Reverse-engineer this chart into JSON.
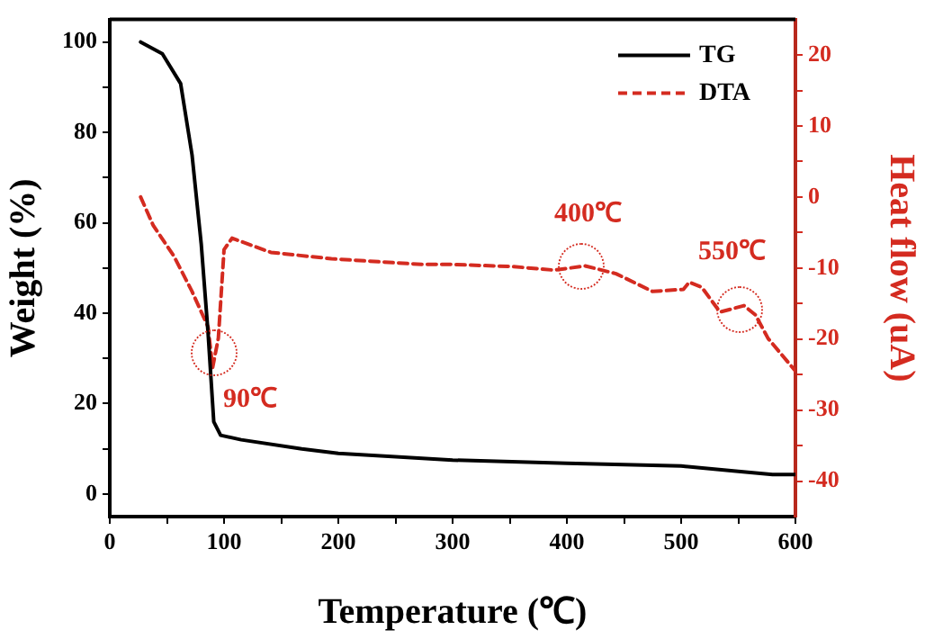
{
  "chart_data": {
    "type": "line",
    "xlabel": "Temperature (℃)",
    "ylabel": "Weight (%)",
    "y2label": "Heat flow (uA)",
    "xlim": [
      0,
      600
    ],
    "xticks": [
      0,
      {
        "value": 50,
        "label": null
      },
      100,
      {
        "value": 150,
        "label": null
      },
      200,
      {
        "value": 250,
        "label": null
      },
      300,
      {
        "value": 350,
        "label": null
      },
      400,
      {
        "value": 450,
        "label": null
      },
      500,
      {
        "value": 550,
        "label": null
      },
      600
    ],
    "ylim": [
      -5,
      105
    ],
    "yticks": [
      0,
      {
        "value": 10,
        "label": null
      },
      20,
      {
        "value": 30,
        "label": null
      },
      40,
      {
        "value": 50,
        "label": null
      },
      60,
      {
        "value": 70,
        "label": null
      },
      80,
      {
        "value": 90,
        "label": null
      },
      100
    ],
    "y2lim": [
      -45,
      25
    ],
    "y2ticks": [
      -40,
      {
        "value": -35,
        "label": null
      },
      -30,
      {
        "value": -25,
        "label": null
      },
      -20,
      {
        "value": -15,
        "label": null
      },
      -10,
      {
        "value": -5,
        "label": null
      },
      0,
      {
        "value": 5,
        "label": null
      },
      10,
      {
        "value": 15,
        "label": null
      },
      20
    ],
    "grid": false,
    "legend": "top right",
    "marker": "none",
    "series": [
      {
        "name": "TG",
        "color": "#000000",
        "line_style": "solid",
        "x": [
          27,
          46,
          62,
          72,
          80,
          86,
          91,
          97,
          115,
          168,
          200,
          300,
          400,
          500,
          550,
          580,
          600
        ],
        "values": [
          100,
          97.4,
          90.8,
          75,
          55.4,
          35.7,
          16,
          13,
          12,
          10,
          9,
          7.5,
          6.8,
          6.2,
          5,
          4.3,
          4.3
        ]
      },
      {
        "name": "DTA",
        "color": "#d42b20",
        "line_style": "dashed",
        "axis": "y2",
        "x": [
          27,
          38,
          56,
          72,
          86,
          90,
          95,
          100,
          107,
          141,
          194,
          273,
          300,
          353,
          389,
          416,
          443,
          475,
          502,
          507,
          518,
          534,
          555,
          565,
          576,
          600
        ],
        "values": [
          0,
          -4,
          -8.3,
          -13.3,
          -18.3,
          -24,
          -19.9,
          -7.4,
          -5.8,
          -7.8,
          -8.7,
          -9.5,
          -9.5,
          -9.8,
          -10.3,
          -9.7,
          -10.8,
          -13.3,
          -13,
          -12,
          -12.7,
          -16.2,
          -15.3,
          -16.6,
          -19.9,
          -24.5
        ]
      }
    ],
    "annotations": [
      "90℃",
      "400℃",
      "550℃"
    ]
  }
}
